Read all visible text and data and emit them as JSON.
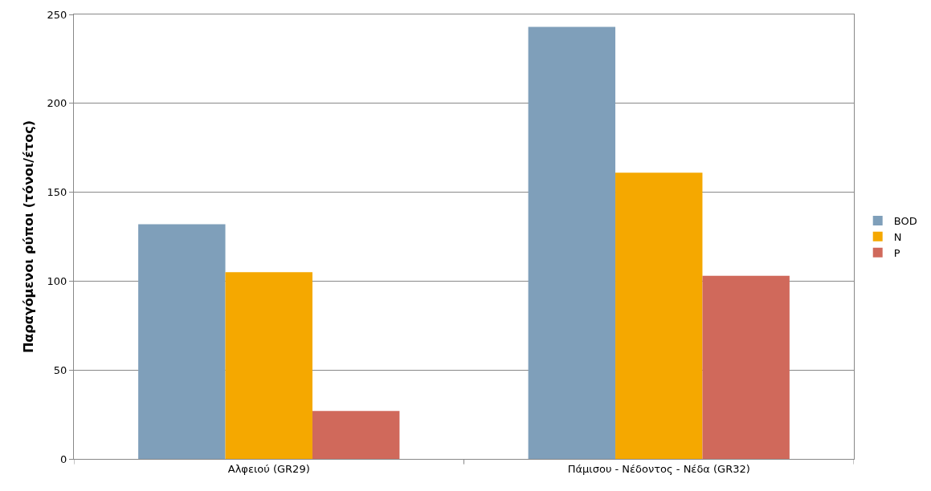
{
  "chart_data": {
    "type": "bar",
    "ylabel": "Παραγόμενοι ρύποι (τόνοι/έτος)",
    "categories": [
      "Αλφειού (GR29)",
      "Πάμισου - Νέδοντος - Νέδα (GR32)"
    ],
    "series": [
      {
        "name": "BOD",
        "color": "#7f9fba",
        "values": [
          132,
          243
        ]
      },
      {
        "name": "N",
        "color": "#f5a800",
        "values": [
          105,
          161
        ]
      },
      {
        "name": "P",
        "color": "#d0695b",
        "values": [
          27,
          103
        ]
      }
    ],
    "ylim": [
      0,
      250
    ],
    "yticks": [
      0,
      50,
      100,
      150,
      200,
      250
    ],
    "grid": "y",
    "legend": "right"
  }
}
